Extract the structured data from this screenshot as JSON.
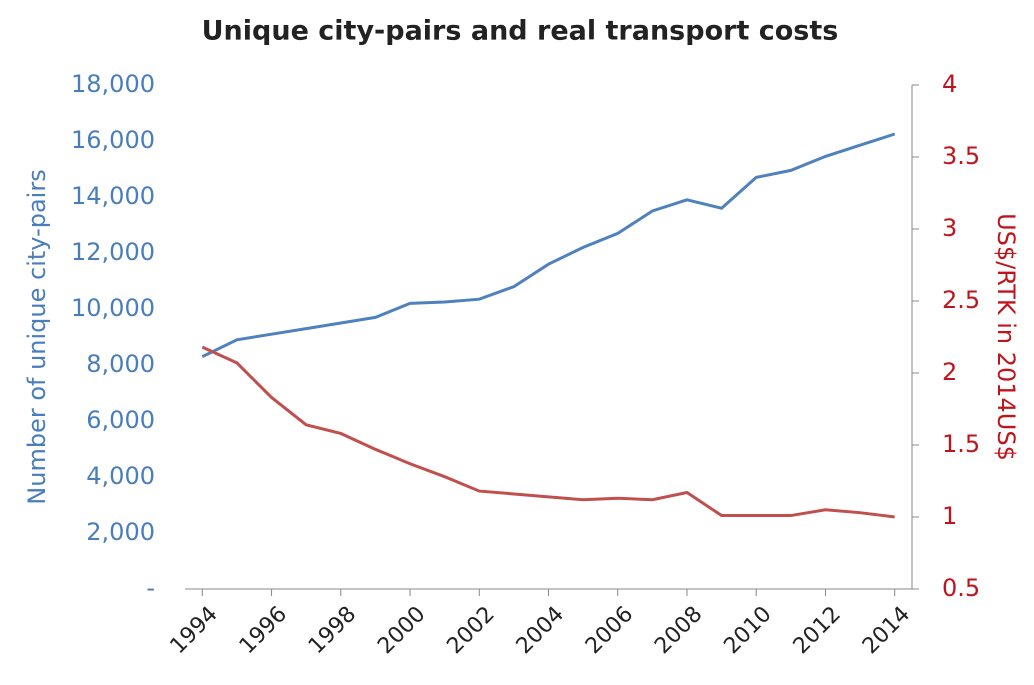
{
  "chart_data": {
    "type": "line",
    "title": "Unique city-pairs and real transport costs",
    "ylabel": "Number of unique city-pairs",
    "y2label": "US$/RTK in 2014US$",
    "x": [
      1994,
      1995,
      1996,
      1997,
      1998,
      1999,
      2000,
      2001,
      2002,
      2003,
      2004,
      2005,
      2006,
      2007,
      2008,
      2009,
      2010,
      2011,
      2012,
      2013,
      2014
    ],
    "xlim": [
      1993.5,
      2014.5
    ],
    "xticks": [
      1994,
      1996,
      1998,
      2000,
      2002,
      2004,
      2006,
      2008,
      2010,
      2012,
      2014
    ],
    "ylim": [
      0,
      18000
    ],
    "yticks": [
      {
        "value": 0,
        "label": "-"
      },
      {
        "value": 2000,
        "label": "2,000"
      },
      {
        "value": 4000,
        "label": "4,000"
      },
      {
        "value": 6000,
        "label": "6,000"
      },
      {
        "value": 8000,
        "label": "8,000"
      },
      {
        "value": 10000,
        "label": "10,000"
      },
      {
        "value": 12000,
        "label": "12,000"
      },
      {
        "value": 14000,
        "label": "14,000"
      },
      {
        "value": 16000,
        "label": "16,000"
      },
      {
        "value": 18000,
        "label": "18,000"
      }
    ],
    "y2lim": [
      0.5,
      4
    ],
    "y2ticks": [
      0.5,
      1,
      1.5,
      2,
      2.5,
      3,
      3.5,
      4
    ],
    "yaxis_color": "#4a7ebb",
    "y2axis_color": "#c0141c",
    "series": [
      {
        "color": "#4f81bd",
        "values": [
          8300,
          8900,
          9100,
          9300,
          9500,
          9700,
          10200,
          10250,
          10350,
          10800,
          11600,
          12200,
          12700,
          13500,
          13900,
          13600,
          14700,
          14950,
          15450,
          15850,
          16250
        ]
      },
      {
        "color": "#c0504d",
        "axis": "y2",
        "values": [
          2.18,
          2.07,
          1.83,
          1.64,
          1.58,
          1.47,
          1.37,
          1.28,
          1.18,
          1.16,
          1.14,
          1.12,
          1.13,
          1.12,
          1.17,
          1.01,
          1.01,
          1.01,
          1.05,
          1.03,
          1.0
        ]
      }
    ]
  }
}
